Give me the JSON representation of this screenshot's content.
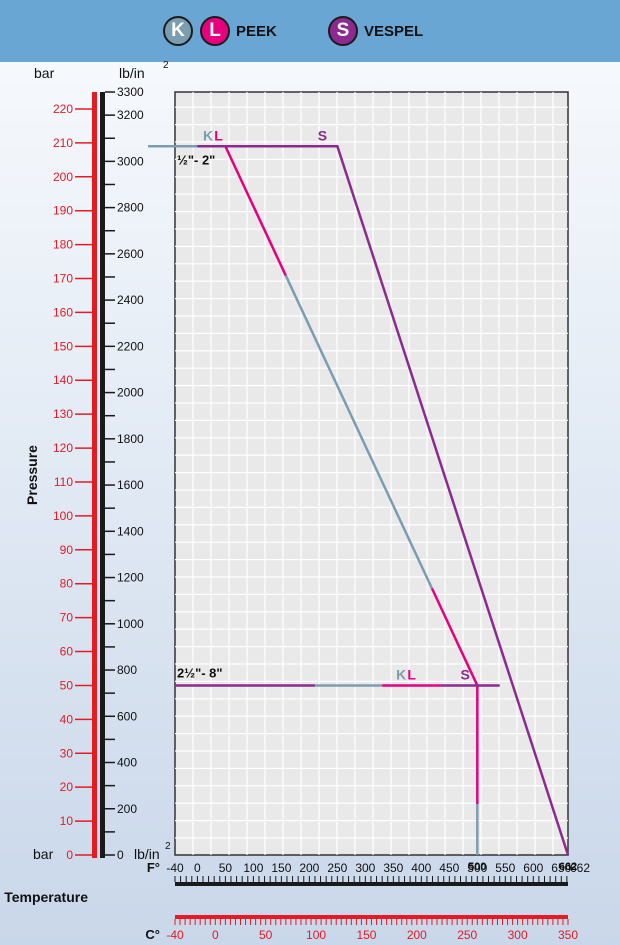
{
  "legend": {
    "k_letter": "K",
    "l_letter": "L",
    "peek_label": "PEEK",
    "s_letter": "S",
    "vespel_label": "VESPEL",
    "k_color": "#7a9db0",
    "l_color": "#e6007e",
    "s_color": "#8b2a8f"
  },
  "chart_data": {
    "type": "line",
    "x_axis_f": {
      "label": "F°",
      "range": [
        -40,
        662
      ],
      "ticks": [
        -40,
        0,
        50,
        100,
        150,
        200,
        250,
        300,
        350,
        400,
        450,
        500,
        550,
        600,
        650,
        662
      ]
    },
    "x_axis_c": {
      "label": "C°",
      "range": [
        -40,
        350
      ],
      "ticks": [
        -40,
        0,
        50,
        100,
        150,
        200,
        250,
        300,
        350
      ]
    },
    "xlabel": "Temperature",
    "ylabel": "Pressure",
    "y_axis_bar": {
      "label": "bar",
      "range": [
        0,
        225
      ],
      "ticks": [
        0,
        10,
        20,
        30,
        40,
        50,
        60,
        70,
        80,
        90,
        100,
        110,
        120,
        130,
        140,
        150,
        160,
        170,
        180,
        190,
        200,
        210,
        220
      ]
    },
    "y_axis_psi": {
      "label": "lb/in",
      "label_sup": "2",
      "range": [
        0,
        3300
      ],
      "ticks": [
        0,
        200,
        400,
        600,
        800,
        1000,
        1200,
        1400,
        1600,
        1800,
        2000,
        2200,
        2400,
        2600,
        2800,
        3000,
        3200,
        3300
      ]
    },
    "grid": true,
    "x_markers": [
      500,
      662
    ],
    "size_labels": {
      "small": "½\"- 2\"",
      "large": "2½\"- 8\""
    },
    "series": [
      {
        "name": "K",
        "color": "#7a9db0",
        "units": "F / bar",
        "points": [
          [
            -40,
            209
          ],
          [
            50,
            209
          ],
          [
            500,
            50
          ],
          [
            500,
            0
          ]
        ]
      },
      {
        "name": "L",
        "color": "#e6007e",
        "units": "F / bar",
        "points": [
          [
            -40,
            209
          ],
          [
            50,
            209
          ],
          [
            500,
            50
          ],
          [
            500,
            0
          ]
        ]
      },
      {
        "name": "S",
        "color": "#8b2a8f",
        "units": "F / bar",
        "points": [
          [
            -40,
            209
          ],
          [
            250,
            209
          ],
          [
            662,
            0
          ]
        ]
      }
    ],
    "line_labels": {
      "top": [
        "K",
        "L",
        "S"
      ],
      "bottom": [
        "K",
        "L",
        "S"
      ]
    }
  }
}
